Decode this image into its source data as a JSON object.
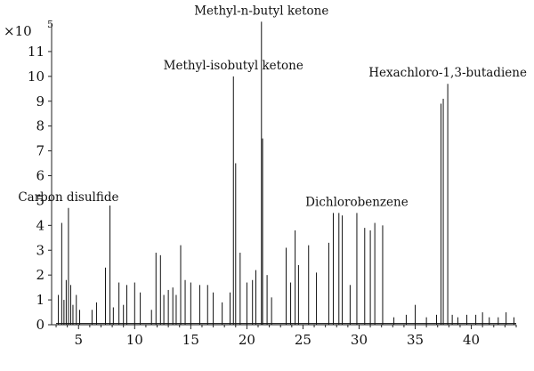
{
  "chart_data": {
    "type": "line",
    "title": "",
    "xlabel": "",
    "ylabel": "",
    "y_multiplier": "×10",
    "y_multiplier_exp": "5",
    "xlim": [
      2.6,
      44
    ],
    "ylim": [
      0,
      12
    ],
    "x_ticks": [
      5,
      10,
      15,
      20,
      25,
      30,
      35,
      40
    ],
    "y_ticks": [
      0,
      1,
      2,
      3,
      4,
      5,
      6,
      7,
      8,
      9,
      10,
      11
    ],
    "grid": false,
    "color": "#111111",
    "peaks": [
      [
        3.2,
        1.2
      ],
      [
        3.5,
        4.1
      ],
      [
        3.7,
        1.0
      ],
      [
        3.9,
        1.8
      ],
      [
        4.1,
        4.7
      ],
      [
        4.3,
        1.6
      ],
      [
        4.5,
        0.8
      ],
      [
        4.8,
        1.2
      ],
      [
        5.1,
        0.6
      ],
      [
        6.2,
        0.6
      ],
      [
        6.6,
        0.9
      ],
      [
        7.4,
        2.3
      ],
      [
        7.8,
        4.8
      ],
      [
        8.1,
        0.7
      ],
      [
        8.6,
        1.7
      ],
      [
        9.0,
        0.8
      ],
      [
        9.3,
        1.6
      ],
      [
        10.0,
        1.7
      ],
      [
        10.5,
        1.3
      ],
      [
        11.5,
        0.6
      ],
      [
        11.9,
        2.9
      ],
      [
        12.3,
        2.8
      ],
      [
        12.6,
        1.2
      ],
      [
        13.0,
        1.4
      ],
      [
        13.4,
        1.5
      ],
      [
        13.7,
        1.2
      ],
      [
        14.1,
        3.2
      ],
      [
        14.5,
        1.8
      ],
      [
        15.0,
        1.7
      ],
      [
        15.8,
        1.6
      ],
      [
        16.5,
        1.6
      ],
      [
        17.0,
        1.3
      ],
      [
        17.8,
        0.9
      ],
      [
        18.5,
        1.3
      ],
      [
        18.8,
        10.0
      ],
      [
        19.0,
        6.5
      ],
      [
        19.4,
        2.9
      ],
      [
        20.0,
        1.7
      ],
      [
        20.5,
        1.8
      ],
      [
        20.8,
        2.2
      ],
      [
        21.3,
        12.2
      ],
      [
        21.4,
        7.5
      ],
      [
        21.8,
        2.0
      ],
      [
        22.2,
        1.1
      ],
      [
        23.5,
        3.1
      ],
      [
        23.9,
        1.7
      ],
      [
        24.3,
        3.8
      ],
      [
        24.6,
        2.4
      ],
      [
        25.5,
        3.2
      ],
      [
        26.2,
        2.1
      ],
      [
        27.3,
        3.3
      ],
      [
        27.7,
        4.5
      ],
      [
        28.2,
        4.5
      ],
      [
        28.5,
        4.4
      ],
      [
        29.2,
        1.6
      ],
      [
        29.8,
        4.5
      ],
      [
        30.5,
        3.9
      ],
      [
        31.0,
        3.8
      ],
      [
        31.4,
        4.1
      ],
      [
        32.1,
        4.0
      ],
      [
        33.1,
        0.3
      ],
      [
        34.2,
        0.4
      ],
      [
        35.0,
        0.8
      ],
      [
        36.0,
        0.3
      ],
      [
        36.9,
        0.4
      ],
      [
        37.3,
        8.9
      ],
      [
        37.5,
        9.1
      ],
      [
        37.9,
        9.7
      ],
      [
        38.3,
        0.4
      ],
      [
        38.8,
        0.3
      ],
      [
        39.6,
        0.4
      ],
      [
        40.4,
        0.4
      ],
      [
        41.0,
        0.5
      ],
      [
        41.6,
        0.3
      ],
      [
        42.4,
        0.3
      ],
      [
        43.1,
        0.5
      ],
      [
        43.8,
        0.3
      ]
    ],
    "annotations": [
      {
        "text": "Carbon disulfide",
        "x": 4.1,
        "y": 4.7
      },
      {
        "text": "Methyl-isobutyl ketone",
        "x": 18.8,
        "y": 10.0
      },
      {
        "text": "Methyl-n-butyl ketone",
        "x": 21.3,
        "y": 12.2
      },
      {
        "text": "Dichlorobenzene",
        "x": 29.8,
        "y": 4.5
      },
      {
        "text": "Hexachloro-1,3-butadiene",
        "x": 37.9,
        "y": 9.7
      }
    ]
  }
}
